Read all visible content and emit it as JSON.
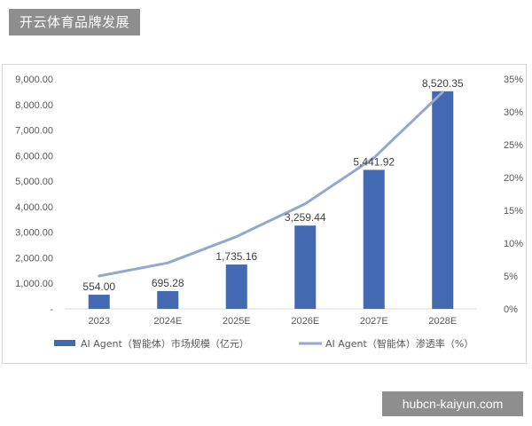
{
  "header": {
    "title": "开云体育品牌发展"
  },
  "watermark": {
    "text": "hubcn-kaiyun.com"
  },
  "chart_data": {
    "type": "bar",
    "categories": [
      "2023",
      "2024E",
      "2025E",
      "2026E",
      "2027E",
      "2028E"
    ],
    "series": [
      {
        "name": "AI Agent（智能体）市场规模（亿元）",
        "type": "bar",
        "axis": "left",
        "color": "#4369b3",
        "values": [
          554.0,
          695.28,
          1735.16,
          3259.44,
          5441.92,
          8520.35
        ],
        "labels": [
          "554.00",
          "695.28",
          "1,735.16",
          "3,259.44",
          "5,441.92",
          "8,520.35"
        ]
      },
      {
        "name": "AI Agent（智能体）渗透率（%）",
        "type": "line",
        "axis": "right",
        "color": "#93a7cf",
        "values": [
          5,
          7,
          11,
          16,
          23,
          33
        ]
      }
    ],
    "y_left": {
      "range": [
        0,
        9000
      ],
      "ticks": [
        0,
        1000,
        2000,
        3000,
        4000,
        5000,
        6000,
        7000,
        8000,
        9000
      ],
      "tick_labels": [
        "-",
        "1,000.00",
        "2,000.00",
        "3,000.00",
        "4,000.00",
        "5,000.00",
        "6,000.00",
        "7,000.00",
        "8,000.00",
        "9,000.00"
      ]
    },
    "y_right": {
      "range": [
        0,
        35
      ],
      "ticks": [
        0,
        5,
        10,
        15,
        20,
        25,
        30,
        35
      ],
      "tick_labels": [
        "0%",
        "5%",
        "10%",
        "15%",
        "20%",
        "25%",
        "30%",
        "35%"
      ]
    },
    "legend_position": "bottom",
    "grid": false
  }
}
